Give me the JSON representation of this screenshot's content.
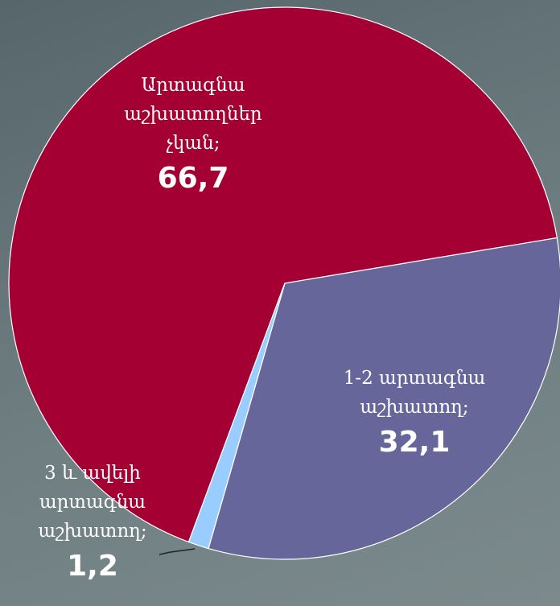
{
  "chart_data": {
    "type": "pie",
    "categories": [
      "Արտագնա աշխատողներ չկան;",
      "1-2 արտագնա աշխատող;",
      "3 և ավելի արտագնա աշխատող;"
    ],
    "values": [
      66.7,
      32.1,
      1.2
    ],
    "value_labels": [
      "66,7",
      "32,1",
      "1,2"
    ],
    "colors": [
      "#a50034",
      "#66669a",
      "#99ccff"
    ]
  }
}
